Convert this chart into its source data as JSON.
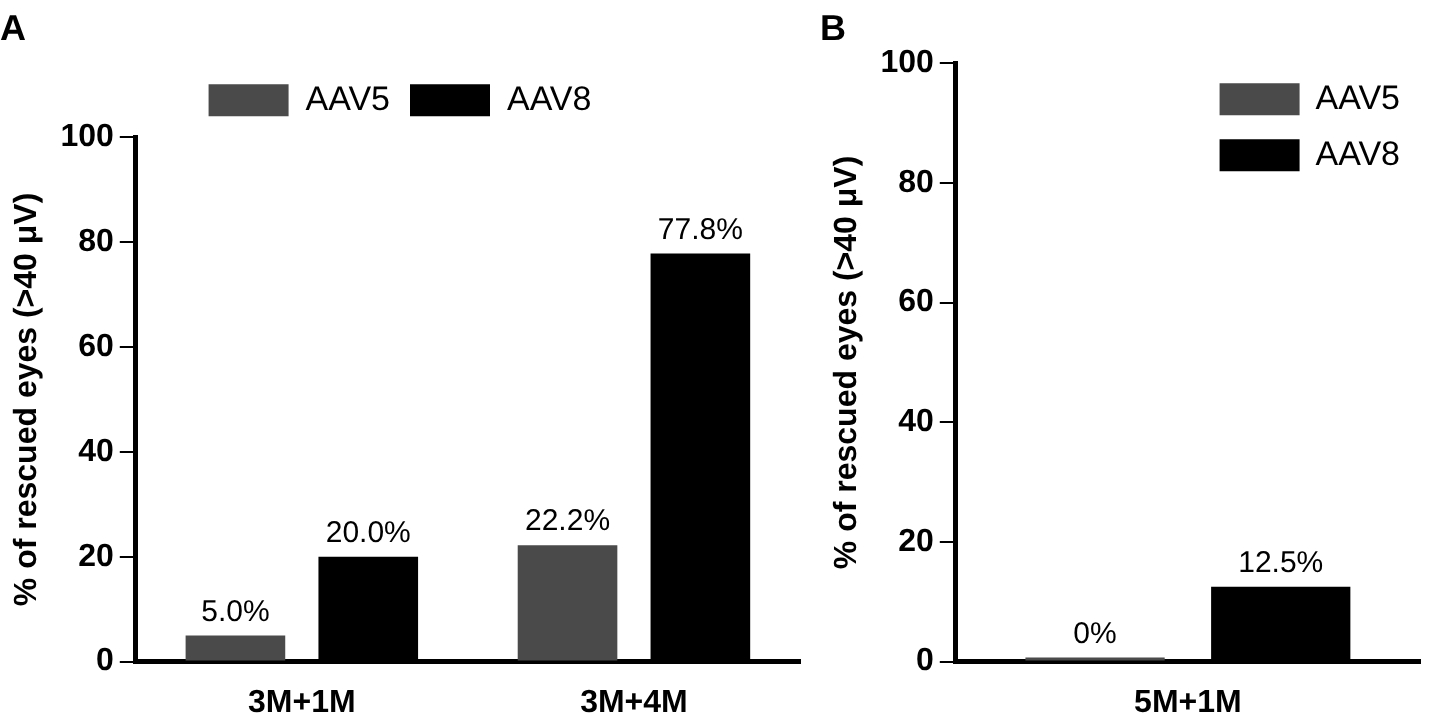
{
  "chart_data": [
    {
      "type": "bar",
      "title": "A",
      "ylabel": "% of rescued eyes (>40 μV)",
      "categories": [
        "3M+1M",
        "3M+4M"
      ],
      "ylim": [
        0,
        100
      ],
      "yticks": [
        0,
        20,
        40,
        60,
        80,
        100
      ],
      "grid": false,
      "legend": "top",
      "series": [
        {
          "name": "AAV5",
          "color": "#4a4a4a",
          "values": [
            5.0,
            22.2
          ],
          "value_labels": [
            "5.0%",
            "22.2%"
          ]
        },
        {
          "name": "AAV8",
          "color": "#000000",
          "values": [
            20.0,
            77.8
          ],
          "value_labels": [
            "20.0%",
            "77.8%"
          ]
        }
      ]
    },
    {
      "type": "bar",
      "title": "B",
      "ylabel": "% of rescued eyes (>40 μV)",
      "categories": [
        "5M+1M"
      ],
      "ylim": [
        0,
        100
      ],
      "yticks": [
        0,
        20,
        40,
        60,
        80,
        100
      ],
      "grid": false,
      "legend": "top right",
      "series": [
        {
          "name": "AAV5",
          "color": "#4a4a4a",
          "values": [
            0
          ],
          "value_labels": [
            "0%"
          ]
        },
        {
          "name": "AAV8",
          "color": "#000000",
          "values": [
            12.5
          ],
          "value_labels": [
            "12.5%"
          ]
        }
      ]
    }
  ]
}
